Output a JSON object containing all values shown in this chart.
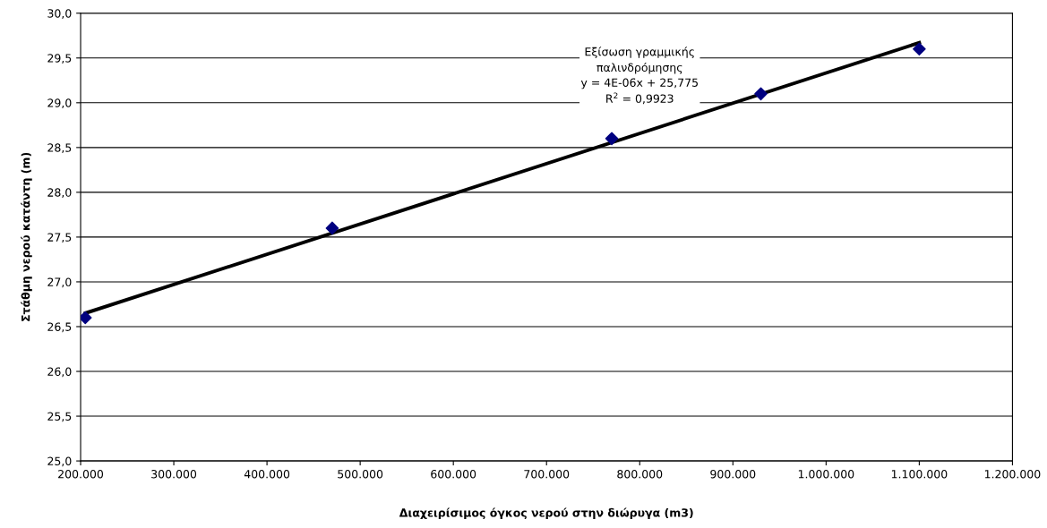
{
  "chart_data": {
    "type": "scatter",
    "xlabel": "Διαχειρίσιμος όγκος νερού στην διώρυγα (m3)",
    "ylabel": "Στάθμη νερού κατάντη (m)",
    "x": [
      205000,
      470000,
      770000,
      930000,
      1100000
    ],
    "series": [
      {
        "color": "#000080",
        "marker": "diamond",
        "values": [
          26.6,
          27.6,
          28.6,
          29.1,
          29.6
        ]
      },
      {
        "type": "line",
        "color": "#000000",
        "marker": "none",
        "line_style": "solid",
        "x": [
          205000,
          1100000
        ],
        "values": [
          26.65,
          29.67
        ]
      }
    ],
    "annotations": [
      "Εξίσωση γραμμικής\nπαλινδρόμησης\ny = 4E-06x + 25,775\nR$^{2}$ = 0,9923"
    ],
    "xlim": [
      200000,
      1200000
    ],
    "xticks": [
      {
        "value": 200000,
        "label": "200.000"
      },
      {
        "value": 300000,
        "label": "300.000"
      },
      {
        "value": 400000,
        "label": "400.000"
      },
      {
        "value": 500000,
        "label": "500.000"
      },
      {
        "value": 600000,
        "label": "600.000"
      },
      {
        "value": 700000,
        "label": "700.000"
      },
      {
        "value": 800000,
        "label": "800.000"
      },
      {
        "value": 900000,
        "label": "900.000"
      },
      {
        "value": 1000000,
        "label": "1.000.000"
      },
      {
        "value": 1100000,
        "label": "1.100.000"
      },
      {
        "value": 1200000,
        "label": "1.200.000"
      }
    ],
    "ylim": [
      25.0,
      30.0
    ],
    "yticks": [
      {
        "value": 25.0,
        "label": "25,0"
      },
      {
        "value": 25.5,
        "label": "25,5"
      },
      {
        "value": 26.0,
        "label": "26,0"
      },
      {
        "value": 26.5,
        "label": "26,5"
      },
      {
        "value": 27.0,
        "label": "27,0"
      },
      {
        "value": 27.5,
        "label": "27,5"
      },
      {
        "value": 28.0,
        "label": "28,0"
      },
      {
        "value": 28.5,
        "label": "28,5"
      },
      {
        "value": 29.0,
        "label": "29,0"
      },
      {
        "value": 29.5,
        "label": "29,5"
      },
      {
        "value": 30.0,
        "label": "30,0"
      }
    ],
    "grid": "y",
    "legend": false
  }
}
